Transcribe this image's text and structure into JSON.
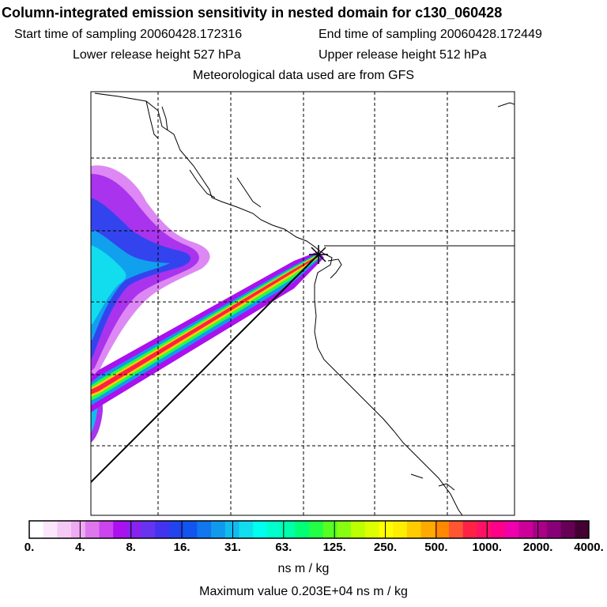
{
  "header": {
    "title": "Column-integrated emission sensitivity in nested domain for c130_060428",
    "start_sampling": "Start time of sampling 20060428.172316",
    "end_sampling": "End time of sampling 20060428.172449",
    "lower_release": "Lower release height  527 hPa",
    "upper_release": "Upper release height  512 hPa",
    "met_data": "Meteorological data used are from GFS"
  },
  "colorbar": {
    "tick_labels": [
      "0.",
      "4.",
      "8.",
      "16.",
      "31.",
      "63.",
      "125.",
      "250.",
      "500.",
      "1000.",
      "2000.",
      "4000."
    ],
    "units": "ns m / kg",
    "colors": [
      "#ffffff",
      "#fbe6fb",
      "#f5c9f5",
      "#eeaaf2",
      "#dd77ee",
      "#cc44ee",
      "#aa11ee",
      "#8822ee",
      "#6633ee",
      "#4433ee",
      "#2244ee",
      "#1155ee",
      "#1177ee",
      "#1199ee",
      "#11bbee",
      "#11ddee",
      "#00ffee",
      "#00ffcc",
      "#00ffaa",
      "#00ff77",
      "#22ff44",
      "#55ff22",
      "#88ff11",
      "#bbff00",
      "#ddff00",
      "#ffff00",
      "#ffee00",
      "#ffcc00",
      "#ffaa00",
      "#ff8800",
      "#ff5533",
      "#ff2244",
      "#ff1166",
      "#ff0088",
      "#ee00aa",
      "#cc0099",
      "#aa0088",
      "#880077",
      "#660055",
      "#440033"
    ]
  },
  "footer": {
    "max_value": "Maximum value  0.203E+04 ns m / kg"
  },
  "map": {
    "domain": "nested",
    "release_marker": "release-point-star"
  }
}
